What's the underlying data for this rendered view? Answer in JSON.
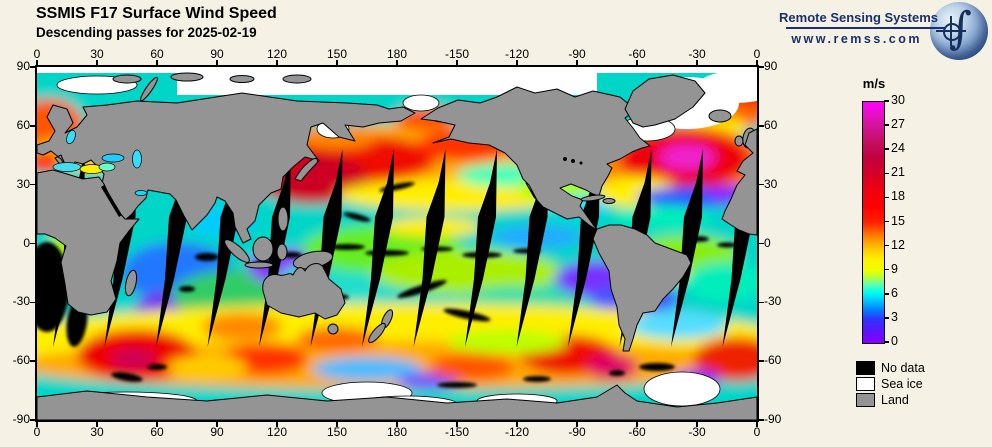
{
  "header": {
    "title": "SSMIS F17 Surface Wind Speed",
    "subtitle": "Descending passes for 2025-02-19"
  },
  "branding": {
    "name": "Remote Sensing Systems",
    "url": "www.remss.com",
    "brand_color": "#1b2f6e"
  },
  "map_axes": {
    "top": [
      "0",
      "30",
      "60",
      "90",
      "120",
      "150",
      "180",
      "-150",
      "-120",
      "-90",
      "-60",
      "-30",
      "0"
    ],
    "bottom": [
      "0",
      "30",
      "60",
      "90",
      "120",
      "150",
      "180",
      "-150",
      "-120",
      "-90",
      "-60",
      "-30",
      "0"
    ],
    "left": [
      "90",
      "60",
      "30",
      "0",
      "-30",
      "-60",
      "-90"
    ],
    "right": [
      "90",
      "60",
      "30",
      "0",
      "-30",
      "-60",
      "-90"
    ]
  },
  "colorbar": {
    "unit": "m/s",
    "min": 0,
    "max": 30,
    "ticks": [
      "30",
      "27",
      "24",
      "21",
      "18",
      "15",
      "12",
      "9",
      "6",
      "3",
      "0"
    ],
    "stops": [
      {
        "v": 0,
        "color": "#8800ff"
      },
      {
        "v": 1.5,
        "color": "#5c14ff"
      },
      {
        "v": 3,
        "color": "#2f35ff"
      },
      {
        "v": 4.2,
        "color": "#0085ff"
      },
      {
        "v": 5.4,
        "color": "#00ccff"
      },
      {
        "v": 6.3,
        "color": "#00ffee"
      },
      {
        "v": 7.2,
        "color": "#55ffbb"
      },
      {
        "v": 8.1,
        "color": "#aaff44"
      },
      {
        "v": 9,
        "color": "#eeff00"
      },
      {
        "v": 10.5,
        "color": "#ffee00"
      },
      {
        "v": 12,
        "color": "#ffbb00"
      },
      {
        "v": 13.5,
        "color": "#ff7700"
      },
      {
        "v": 15,
        "color": "#ff2200"
      },
      {
        "v": 17,
        "color": "#ff0000"
      },
      {
        "v": 19,
        "color": "#ee0011"
      },
      {
        "v": 21,
        "color": "#d50026"
      },
      {
        "v": 23,
        "color": "#c3003e"
      },
      {
        "v": 25,
        "color": "#c40f63"
      },
      {
        "v": 27,
        "color": "#d2149b"
      },
      {
        "v": 28.5,
        "color": "#e711c8"
      },
      {
        "v": 30,
        "color": "#ff00ff"
      }
    ]
  },
  "legend": {
    "items": [
      {
        "label": "No data",
        "color": "#000000"
      },
      {
        "label": "Sea ice",
        "color": "#ffffff"
      },
      {
        "label": "Land",
        "color": "#949494"
      }
    ]
  },
  "palette": {
    "background": "#f5f1e4",
    "land": "#949494",
    "sea_ice": "#ffffff",
    "no_data": "#000000",
    "coastline": "#000000",
    "axis": "#000000"
  }
}
